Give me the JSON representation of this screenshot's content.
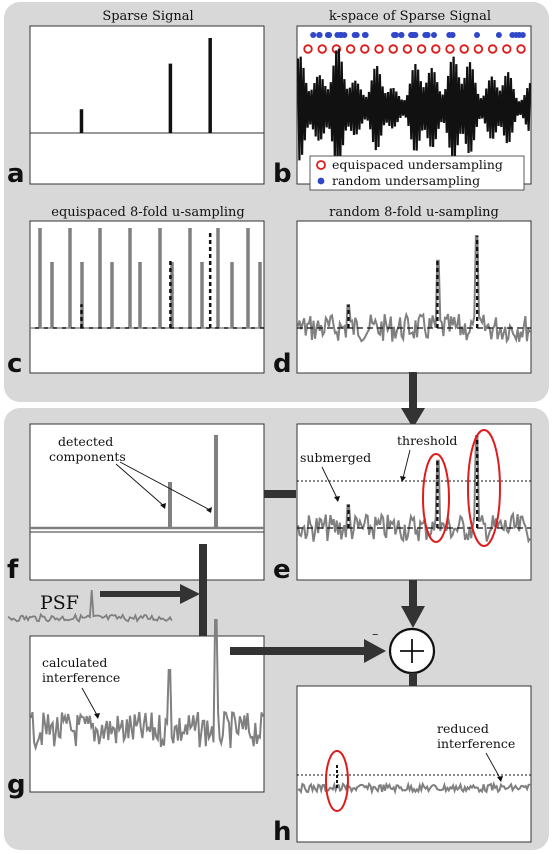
{
  "panels": {
    "a": {
      "title": "Sparse Signal",
      "letter": "a"
    },
    "b": {
      "title": "k-space of Sparse Signal",
      "letter": "b"
    },
    "c": {
      "title": "equispaced 8-fold u-sampling",
      "letter": "c"
    },
    "d": {
      "title": "random 8-fold u-sampling",
      "letter": "d"
    },
    "e": {
      "letter": "e",
      "threshold_label": "threshold",
      "submerged_label": "submerged"
    },
    "f": {
      "letter": "f",
      "detected_label_1": "detected",
      "detected_label_2": "components"
    },
    "g": {
      "letter": "g",
      "calc_label_1": "calculated",
      "calc_label_2": "interference"
    },
    "h": {
      "letter": "h",
      "reduced_label_1": "reduced",
      "reduced_label_2": "interference"
    }
  },
  "legend": {
    "equispaced": "equispaced undersampling",
    "random": "random undersampling"
  },
  "psf_label": "PSF",
  "minus_sign": "–",
  "colors": {
    "background_group": "#d8d8d8",
    "signal_black": "#111111",
    "interference_gray": "#808080",
    "circle_red": "#e01b1b",
    "dot_blue": "#2f47c8"
  },
  "chart_data": {
    "type": "line",
    "sparse_signal": {
      "components": [
        {
          "x": 0.22,
          "amplitude": 0.25
        },
        {
          "x": 0.6,
          "amplitude": 0.73
        },
        {
          "x": 0.77,
          "amplitude": 1.0
        }
      ]
    }
  }
}
